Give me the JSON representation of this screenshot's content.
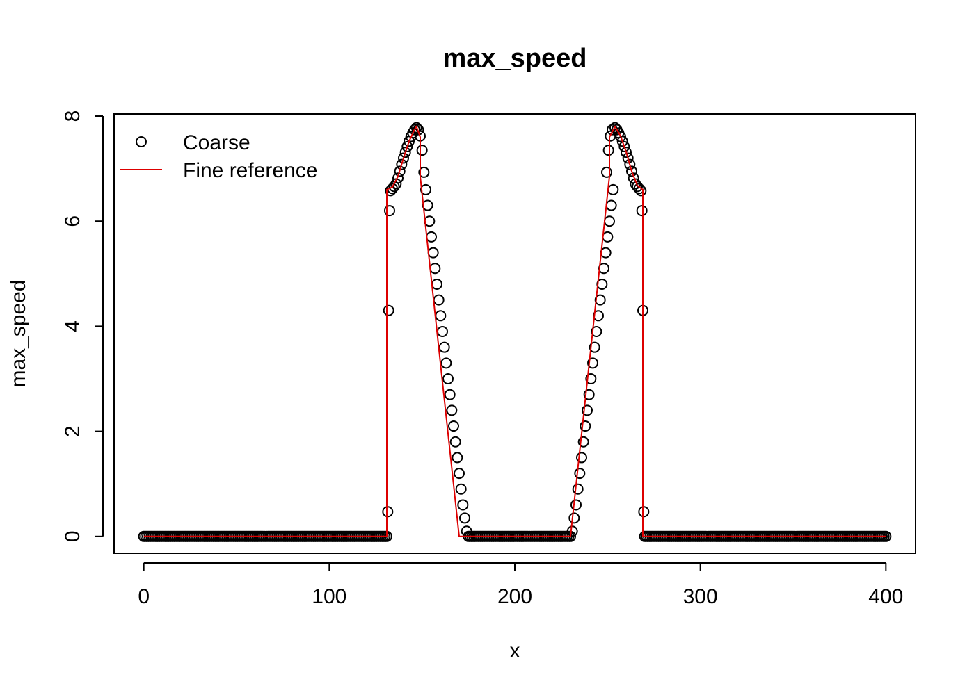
{
  "chart_data": {
    "type": "scatter",
    "title": "max_speed",
    "xlabel": "x",
    "ylabel": "max_speed",
    "xlim": [
      -16,
      416
    ],
    "ylim": [
      -0.32,
      8.04
    ],
    "xticks": [
      "0",
      "100",
      "200",
      "300",
      "400"
    ],
    "yticks": [
      "0",
      "2",
      "4",
      "6",
      "8"
    ],
    "grid": false,
    "legend_position": "top-left",
    "colors": {
      "coarse": "#000000",
      "fine": "#dd0000",
      "frame": "#000000"
    },
    "series": [
      {
        "name": "Coarse",
        "kind": "points",
        "marker": "open-circle",
        "points": [
          [
            0,
            0
          ],
          [
            131,
            0
          ],
          [
            131.5,
            0.47
          ],
          [
            132,
            4.3
          ],
          [
            132.5,
            6.2
          ],
          [
            133,
            6.58
          ],
          [
            134,
            6.62
          ],
          [
            135,
            6.66
          ],
          [
            136,
            6.71
          ],
          [
            137,
            6.82
          ],
          [
            138,
            6.95
          ],
          [
            139,
            7.08
          ],
          [
            140,
            7.2
          ],
          [
            141,
            7.31
          ],
          [
            142,
            7.42
          ],
          [
            143,
            7.52
          ],
          [
            144,
            7.61
          ],
          [
            145,
            7.68
          ],
          [
            146,
            7.74
          ],
          [
            147,
            7.78
          ],
          [
            148,
            7.74
          ],
          [
            149,
            7.62
          ],
          [
            150,
            7.35
          ],
          [
            151,
            6.93
          ],
          [
            152,
            6.6
          ],
          [
            153,
            6.3
          ],
          [
            154,
            6.0
          ],
          [
            155,
            5.7
          ],
          [
            156,
            5.4
          ],
          [
            157,
            5.1
          ],
          [
            158,
            4.8
          ],
          [
            159,
            4.5
          ],
          [
            160,
            4.2
          ],
          [
            161,
            3.9
          ],
          [
            162,
            3.6
          ],
          [
            163,
            3.3
          ],
          [
            164,
            3.0
          ],
          [
            165,
            2.7
          ],
          [
            166,
            2.4
          ],
          [
            167,
            2.1
          ],
          [
            168,
            1.8
          ],
          [
            169,
            1.5
          ],
          [
            170,
            1.2
          ],
          [
            171,
            0.9
          ],
          [
            172,
            0.6
          ],
          [
            173,
            0.35
          ],
          [
            174,
            0.1
          ],
          [
            175,
            0
          ],
          [
            230,
            0
          ],
          [
            231,
            0.1
          ],
          [
            232,
            0.35
          ],
          [
            233,
            0.6
          ],
          [
            234,
            0.9
          ],
          [
            235,
            1.2
          ],
          [
            236,
            1.5
          ],
          [
            237,
            1.8
          ],
          [
            238,
            2.1
          ],
          [
            239,
            2.4
          ],
          [
            240,
            2.7
          ],
          [
            241,
            3.0
          ],
          [
            242,
            3.3
          ],
          [
            243,
            3.6
          ],
          [
            244,
            3.9
          ],
          [
            245,
            4.2
          ],
          [
            246,
            4.5
          ],
          [
            247,
            4.8
          ],
          [
            248,
            5.1
          ],
          [
            249,
            5.4
          ],
          [
            250,
            5.7
          ],
          [
            251,
            6.0
          ],
          [
            252,
            6.3
          ],
          [
            253,
            6.6
          ],
          [
            249.5,
            6.93
          ],
          [
            250.5,
            7.35
          ],
          [
            251.5,
            7.62
          ],
          [
            252.5,
            7.74
          ],
          [
            254,
            7.78
          ],
          [
            255,
            7.74
          ],
          [
            256,
            7.68
          ],
          [
            257,
            7.61
          ],
          [
            258,
            7.52
          ],
          [
            259,
            7.42
          ],
          [
            260,
            7.31
          ],
          [
            261,
            7.2
          ],
          [
            262,
            7.08
          ],
          [
            263,
            6.95
          ],
          [
            264,
            6.82
          ],
          [
            265,
            6.71
          ],
          [
            266,
            6.66
          ],
          [
            267,
            6.62
          ],
          [
            268,
            6.58
          ],
          [
            268.5,
            6.2
          ],
          [
            269,
            4.3
          ],
          [
            269.5,
            0.47
          ],
          [
            270,
            0
          ],
          [
            400,
            0
          ]
        ]
      },
      {
        "name": "Fine reference",
        "kind": "line",
        "points": [
          [
            0,
            0
          ],
          [
            131,
            0
          ],
          [
            131,
            6.6
          ],
          [
            134,
            6.65
          ],
          [
            137,
            6.85
          ],
          [
            140,
            7.2
          ],
          [
            143,
            7.52
          ],
          [
            146,
            7.75
          ],
          [
            147,
            7.8
          ],
          [
            149,
            7.6
          ],
          [
            149,
            6.85
          ],
          [
            170,
            0
          ],
          [
            230,
            0
          ],
          [
            251,
            6.85
          ],
          [
            251,
            7.6
          ],
          [
            254,
            7.8
          ],
          [
            257,
            7.62
          ],
          [
            260,
            7.32
          ],
          [
            263,
            6.95
          ],
          [
            266,
            6.68
          ],
          [
            269,
            6.6
          ],
          [
            269,
            0
          ],
          [
            400,
            0
          ]
        ]
      }
    ]
  }
}
